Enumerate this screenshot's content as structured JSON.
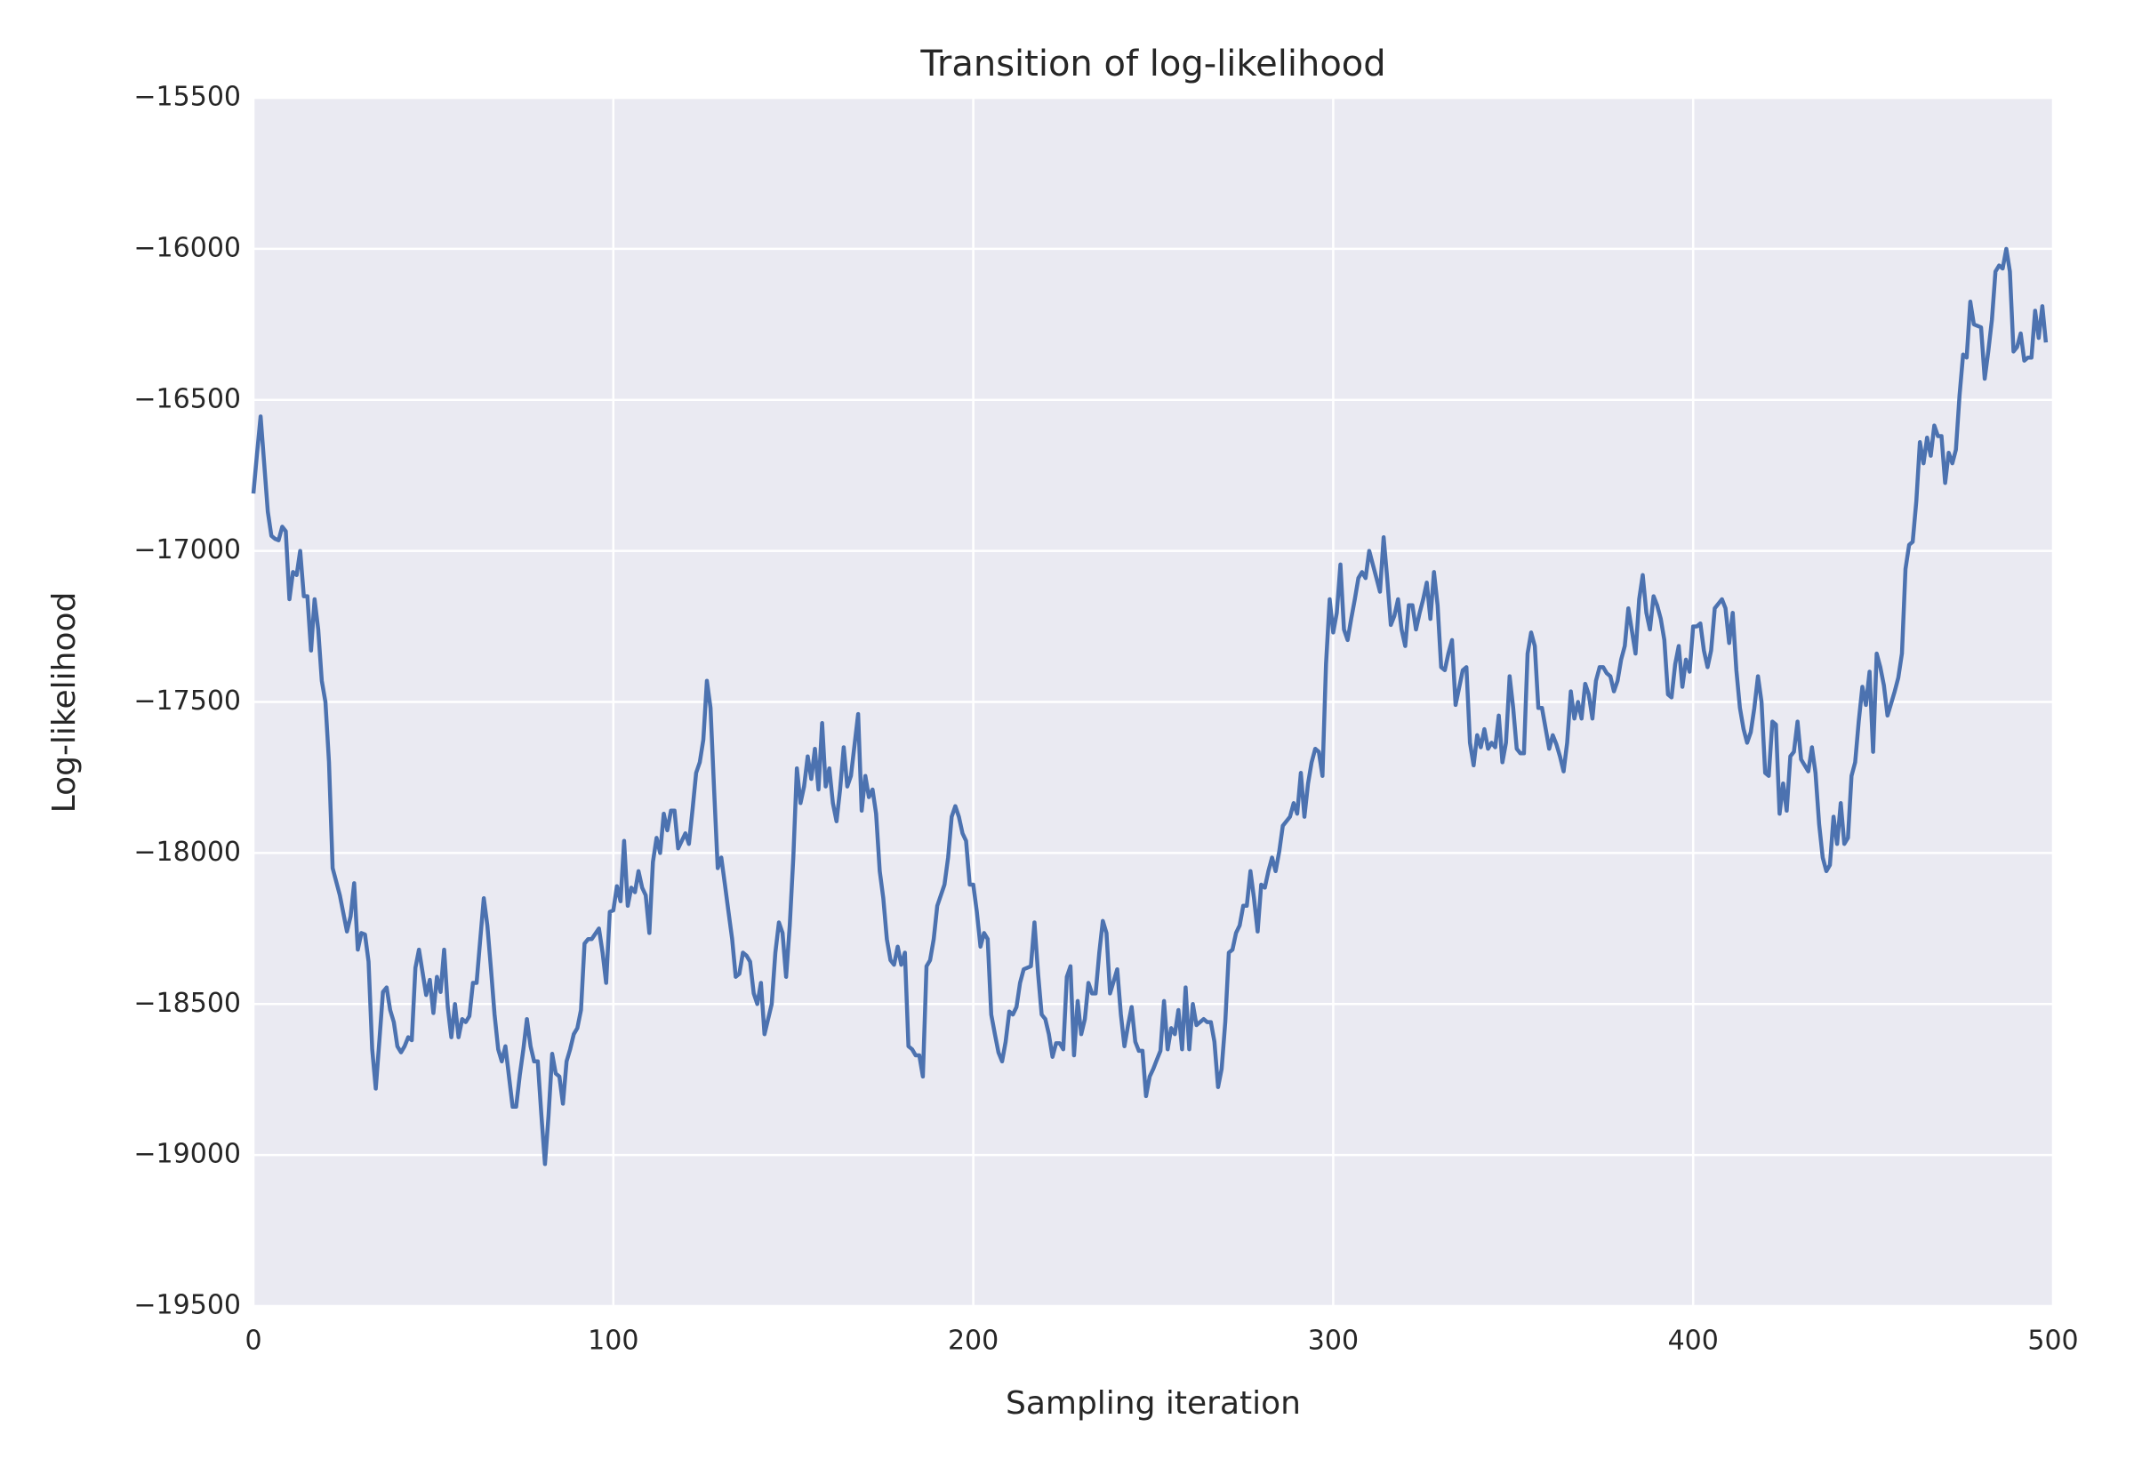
{
  "chart_data": {
    "type": "line",
    "title": "Transition of log-likelihood",
    "x_label": "Sampling iteration",
    "y_label": "Log-likelihood",
    "color": "#4c72b0",
    "grid": true,
    "background": "#eaeaf2",
    "xlim": [
      0,
      500
    ],
    "xticks": [
      0,
      100,
      200,
      300,
      400,
      500
    ],
    "ylim": [
      -19500,
      -15500
    ],
    "yticks": [
      {
        "value": -15500,
        "label": "−15500"
      },
      {
        "value": -16000,
        "label": "−16000"
      },
      {
        "value": -16500,
        "label": "−16500"
      },
      {
        "value": -17000,
        "label": "−17000"
      },
      {
        "value": -17500,
        "label": "−17500"
      },
      {
        "value": -18000,
        "label": "−18000"
      },
      {
        "value": -18500,
        "label": "−18500"
      },
      {
        "value": -19000,
        "label": "−19000"
      },
      {
        "value": -19500,
        "label": "−19500"
      }
    ],
    "x": [
      0,
      1,
      2,
      3,
      4,
      5,
      6,
      7,
      8,
      9,
      10,
      11,
      12,
      13,
      14,
      15,
      16,
      17,
      18,
      19,
      20,
      21,
      22,
      24,
      25,
      26,
      27,
      28,
      29,
      30,
      31,
      32,
      33,
      34,
      35,
      36,
      37,
      38,
      39,
      40,
      41,
      42,
      43,
      44,
      45,
      46,
      48,
      49,
      50,
      51,
      52,
      53,
      54,
      55,
      56,
      57,
      58,
      59,
      60,
      61,
      62,
      63,
      64,
      65,
      66,
      67,
      68,
      69,
      70,
      72,
      73,
      74,
      75,
      76,
      77,
      78,
      79,
      80,
      81,
      82,
      83,
      84,
      85,
      86,
      87,
      88,
      89,
      90,
      91,
      92,
      93,
      94,
      96,
      97,
      98,
      99,
      100,
      101,
      102,
      103,
      104,
      105,
      106,
      107,
      108,
      109,
      110,
      111,
      112,
      113,
      114,
      115,
      116,
      117,
      118,
      120,
      121,
      122,
      123,
      124,
      125,
      126,
      127,
      128,
      129,
      130,
      131,
      132,
      133,
      134,
      135,
      136,
      137,
      138,
      139,
      140,
      141,
      142,
      144,
      145,
      146,
      147,
      148,
      149,
      150,
      151,
      152,
      153,
      154,
      155,
      156,
      157,
      158,
      159,
      160,
      161,
      162,
      163,
      164,
      165,
      166,
      168,
      169,
      170,
      171,
      172,
      173,
      174,
      175,
      176,
      177,
      178,
      179,
      180,
      181,
      182,
      183,
      184,
      185,
      186,
      187,
      188,
      189,
      190,
      192,
      193,
      194,
      195,
      196,
      197,
      198,
      199,
      200,
      201,
      202,
      203,
      204,
      205,
      206,
      207,
      208,
      209,
      210,
      211,
      212,
      213,
      214,
      216,
      217,
      218,
      219,
      220,
      221,
      222,
      223,
      224,
      225,
      226,
      227,
      228,
      229,
      230,
      231,
      232,
      233,
      234,
      235,
      236,
      237,
      238,
      240,
      241,
      242,
      243,
      244,
      245,
      246,
      247,
      248,
      249,
      250,
      251,
      252,
      253,
      254,
      255,
      256,
      257,
      258,
      259,
      260,
      261,
      262,
      264,
      265,
      266,
      267,
      268,
      269,
      270,
      271,
      272,
      273,
      274,
      275,
      276,
      277,
      278,
      279,
      280,
      281,
      282,
      283,
      284,
      285,
      286,
      288,
      289,
      290,
      291,
      292,
      293,
      294,
      295,
      296,
      297,
      298,
      299,
      300,
      301,
      302,
      303,
      304,
      305,
      306,
      307,
      308,
      309,
      310,
      312,
      313,
      314,
      315,
      316,
      317,
      318,
      319,
      320,
      321,
      322,
      323,
      324,
      325,
      326,
      327,
      328,
      329,
      330,
      331,
      332,
      333,
      334,
      336,
      337,
      338,
      339,
      340,
      341,
      342,
      343,
      344,
      345,
      346,
      347,
      348,
      349,
      350,
      351,
      352,
      353,
      354,
      355,
      356,
      357,
      358,
      360,
      361,
      362,
      363,
      364,
      365,
      366,
      367,
      368,
      369,
      370,
      371,
      372,
      373,
      374,
      375,
      376,
      377,
      378,
      379,
      380,
      381,
      382,
      384,
      385,
      386,
      387,
      388,
      389,
      390,
      391,
      392,
      393,
      394,
      395,
      396,
      397,
      398,
      399,
      400,
      401,
      402,
      403,
      404,
      405,
      406,
      408,
      409,
      410,
      411,
      412,
      413,
      414,
      415,
      416,
      417,
      418,
      419,
      420,
      421,
      422,
      423,
      424,
      425,
      426,
      427,
      428,
      429,
      430,
      432,
      433,
      434,
      435,
      436,
      437,
      438,
      439,
      440,
      441,
      442,
      443,
      444,
      445,
      446,
      447,
      448,
      449,
      450,
      451,
      452,
      453,
      454,
      456,
      457,
      458,
      459,
      460,
      461,
      462,
      463,
      464,
      465,
      466,
      467,
      468,
      469,
      470,
      471,
      472,
      473,
      474,
      475,
      476,
      477,
      478,
      480,
      481,
      482,
      483,
      484,
      485,
      486,
      487,
      488,
      489,
      490,
      491,
      492,
      493,
      494,
      495,
      496,
      497,
      498
    ],
    "values": [
      -16810,
      -16680,
      -16555,
      -16710,
      -16870,
      -16950,
      -16960,
      -16965,
      -16920,
      -16935,
      -17160,
      -17070,
      -17080,
      -17000,
      -17150,
      -17150,
      -17330,
      -17160,
      -17260,
      -17430,
      -17500,
      -17700,
      -18050,
      -18140,
      -18200,
      -18260,
      -18210,
      -18100,
      -18320,
      -18265,
      -18270,
      -18360,
      -18650,
      -18780,
      -18620,
      -18460,
      -18445,
      -18520,
      -18560,
      -18640,
      -18660,
      -18640,
      -18610,
      -18620,
      -18380,
      -18320,
      -18470,
      -18420,
      -18530,
      -18410,
      -18460,
      -18320,
      -18510,
      -18610,
      -18500,
      -18610,
      -18550,
      -18560,
      -18540,
      -18430,
      -18430,
      -18290,
      -18150,
      -18240,
      -18385,
      -18535,
      -18650,
      -18690,
      -18640,
      -18840,
      -18840,
      -18735,
      -18650,
      -18550,
      -18640,
      -18690,
      -18690,
      -18865,
      -19030,
      -18870,
      -18665,
      -18730,
      -18740,
      -18830,
      -18690,
      -18650,
      -18600,
      -18580,
      -18520,
      -18300,
      -18285,
      -18285,
      -18250,
      -18330,
      -18430,
      -18195,
      -18190,
      -18110,
      -18160,
      -17960,
      -18175,
      -18115,
      -18130,
      -18060,
      -18115,
      -18140,
      -18265,
      -18030,
      -17950,
      -18000,
      -17870,
      -17925,
      -17860,
      -17860,
      -17985,
      -17935,
      -17970,
      -17855,
      -17735,
      -17700,
      -17625,
      -17430,
      -17520,
      -17790,
      -18050,
      -18015,
      -18105,
      -18195,
      -18285,
      -18410,
      -18400,
      -18330,
      -18340,
      -18360,
      -18465,
      -18500,
      -18430,
      -18600,
      -18500,
      -18330,
      -18230,
      -18265,
      -18410,
      -18240,
      -18015,
      -17720,
      -17835,
      -17780,
      -17680,
      -17755,
      -17655,
      -17790,
      -17570,
      -17780,
      -17720,
      -17835,
      -17895,
      -17790,
      -17650,
      -17780,
      -17745,
      -17540,
      -17860,
      -17745,
      -17815,
      -17790,
      -17870,
      -18060,
      -18150,
      -18285,
      -18355,
      -18370,
      -18310,
      -18370,
      -18330,
      -18640,
      -18650,
      -18670,
      -18670,
      -18740,
      -18375,
      -18355,
      -18285,
      -18175,
      -18105,
      -18015,
      -17880,
      -17845,
      -17880,
      -17935,
      -17960,
      -18105,
      -18105,
      -18195,
      -18310,
      -18265,
      -18285,
      -18535,
      -18600,
      -18660,
      -18690,
      -18625,
      -18525,
      -18535,
      -18510,
      -18430,
      -18385,
      -18375,
      -18230,
      -18400,
      -18535,
      -18550,
      -18600,
      -18675,
      -18630,
      -18630,
      -18650,
      -18410,
      -18375,
      -18670,
      -18490,
      -18600,
      -18550,
      -18430,
      -18465,
      -18465,
      -18330,
      -18225,
      -18265,
      -18465,
      -18385,
      -18535,
      -18640,
      -18570,
      -18510,
      -18625,
      -18655,
      -18655,
      -18805,
      -18740,
      -18715,
      -18685,
      -18655,
      -18490,
      -18650,
      -18580,
      -18600,
      -18520,
      -18650,
      -18445,
      -18650,
      -18500,
      -18570,
      -18550,
      -18560,
      -18560,
      -18625,
      -18775,
      -18715,
      -18560,
      -18330,
      -18320,
      -18265,
      -18240,
      -18175,
      -18175,
      -18060,
      -18150,
      -18260,
      -18105,
      -18115,
      -18060,
      -18015,
      -18060,
      -17995,
      -17910,
      -17880,
      -17835,
      -17870,
      -17735,
      -17880,
      -17770,
      -17700,
      -17655,
      -17665,
      -17745,
      -17375,
      -17160,
      -17270,
      -17205,
      -17045,
      -17260,
      -17295,
      -17225,
      -17160,
      -17090,
      -17070,
      -17090,
      -17000,
      -17090,
      -17135,
      -16955,
      -17090,
      -17245,
      -17215,
      -17160,
      -17260,
      -17315,
      -17180,
      -17180,
      -17260,
      -17205,
      -17160,
      -17105,
      -17225,
      -17070,
      -17180,
      -17385,
      -17395,
      -17340,
      -17295,
      -17510,
      -17395,
      -17385,
      -17635,
      -17710,
      -17610,
      -17650,
      -17590,
      -17655,
      -17635,
      -17650,
      -17545,
      -17700,
      -17635,
      -17415,
      -17520,
      -17655,
      -17670,
      -17670,
      -17340,
      -17270,
      -17315,
      -17520,
      -17520,
      -17655,
      -17610,
      -17640,
      -17680,
      -17730,
      -17635,
      -17465,
      -17555,
      -17500,
      -17555,
      -17440,
      -17475,
      -17555,
      -17430,
      -17385,
      -17385,
      -17405,
      -17415,
      -17465,
      -17430,
      -17360,
      -17315,
      -17190,
      -17340,
      -17160,
      -17080,
      -17205,
      -17260,
      -17150,
      -17180,
      -17225,
      -17295,
      -17475,
      -17485,
      -17375,
      -17315,
      -17450,
      -17360,
      -17400,
      -17250,
      -17250,
      -17240,
      -17330,
      -17385,
      -17330,
      -17190,
      -17160,
      -17190,
      -17305,
      -17205,
      -17395,
      -17520,
      -17590,
      -17635,
      -17600,
      -17520,
      -17415,
      -17500,
      -17735,
      -17745,
      -17565,
      -17575,
      -17870,
      -17770,
      -17860,
      -17680,
      -17665,
      -17565,
      -17690,
      -17730,
      -17650,
      -17735,
      -17905,
      -18015,
      -18060,
      -18040,
      -17880,
      -17970,
      -17835,
      -17970,
      -17950,
      -17745,
      -17700,
      -17565,
      -17450,
      -17510,
      -17400,
      -17665,
      -17340,
      -17385,
      -17445,
      -17545,
      -17465,
      -17420,
      -17340,
      -17060,
      -16980,
      -16970,
      -16835,
      -16640,
      -16710,
      -16625,
      -16685,
      -16585,
      -16620,
      -16620,
      -16775,
      -16675,
      -16710,
      -16665,
      -16485,
      -16350,
      -16360,
      -16175,
      -16250,
      -16260,
      -16430,
      -16340,
      -16235,
      -16075,
      -16055,
      -16065,
      -16000,
      -16075,
      -16340,
      -16325,
      -16280,
      -16370,
      -16360,
      -16360,
      -16205,
      -16295,
      -16190,
      -16310
    ]
  }
}
